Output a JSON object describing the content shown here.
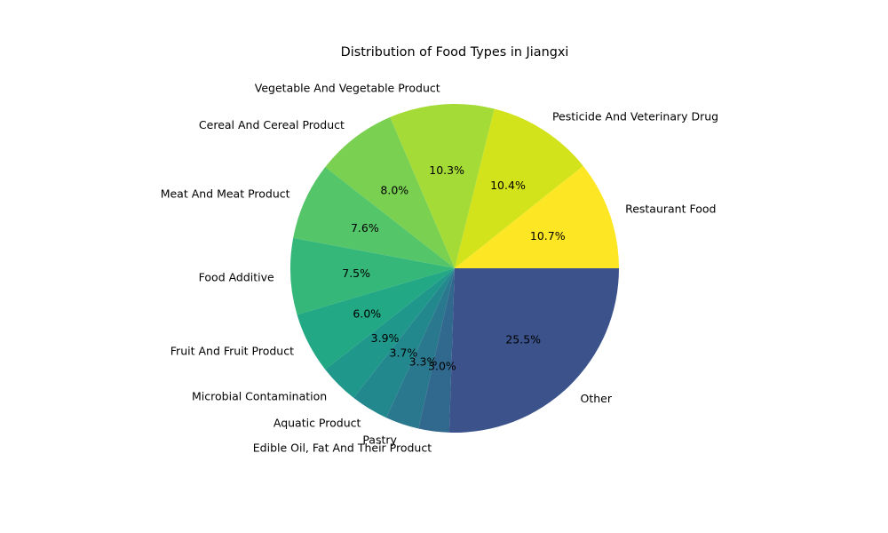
{
  "chart_data": {
    "type": "pie",
    "title": "Distribution of Food Types in Jiangxi",
    "start_angle_deg": 0,
    "direction": "counterclockwise",
    "slices": [
      {
        "label": "Restaurant Food",
        "value": 10.7,
        "pct_label": "10.7%",
        "color": "#fde725"
      },
      {
        "label": "Pesticide And Veterinary Drug",
        "value": 10.4,
        "pct_label": "10.4%",
        "color": "#d2e21b"
      },
      {
        "label": "Vegetable And Vegetable Product",
        "value": 10.3,
        "pct_label": "10.3%",
        "color": "#a5db36"
      },
      {
        "label": "Cereal And Cereal Product",
        "value": 8.0,
        "pct_label": "8.0%",
        "color": "#7ad151"
      },
      {
        "label": "Meat And Meat Product",
        "value": 7.6,
        "pct_label": "7.6%",
        "color": "#54c568"
      },
      {
        "label": "Food Additive",
        "value": 7.5,
        "pct_label": "7.5%",
        "color": "#35b779"
      },
      {
        "label": "Fruit And Fruit Product",
        "value": 6.0,
        "pct_label": "6.0%",
        "color": "#22a884"
      },
      {
        "label": "Microbial Contamination",
        "value": 3.9,
        "pct_label": "3.9%",
        "color": "#1f988b"
      },
      {
        "label": "Aquatic Product",
        "value": 3.7,
        "pct_label": "3.7%",
        "color": "#23888e"
      },
      {
        "label": "Pastry",
        "value": 3.3,
        "pct_label": "3.3%",
        "color": "#2a788e"
      },
      {
        "label": "Edible Oil, Fat And Their Product",
        "value": 3.0,
        "pct_label": "3.0%",
        "color": "#31688e"
      },
      {
        "label": "Other",
        "value": 25.5,
        "pct_label": "25.5%",
        "color": "#3b528b"
      }
    ]
  }
}
